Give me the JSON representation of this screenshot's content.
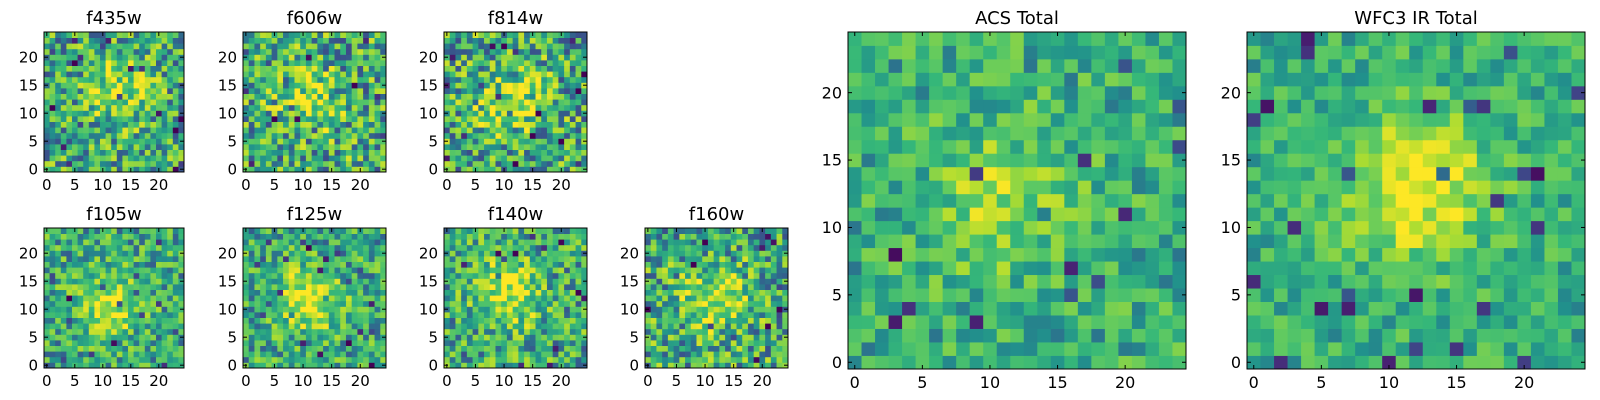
{
  "chart_data": [
    {
      "type": "heatmap",
      "title": "f435w",
      "xlabel": "",
      "ylabel": "",
      "grid": false,
      "xlim": [
        -0.5,
        24.5
      ],
      "ylim": [
        -0.5,
        24.5
      ],
      "xticks": [
        "0",
        "5",
        "10",
        "15",
        "20"
      ],
      "yticks": [
        "0",
        "5",
        "10",
        "15",
        "20"
      ],
      "colormap": "viridis",
      "pixels": [
        25,
        25
      ],
      "noise": 0.55,
      "blob_center": [
        13,
        14
      ],
      "blob_strength": 0.45
    },
    {
      "type": "heatmap",
      "title": "f606w",
      "xlabel": "",
      "ylabel": "",
      "grid": false,
      "xlim": [
        -0.5,
        24.5
      ],
      "ylim": [
        -0.5,
        24.5
      ],
      "xticks": [
        "0",
        "5",
        "10",
        "15",
        "20"
      ],
      "yticks": [
        "0",
        "5",
        "10",
        "15",
        "20"
      ],
      "colormap": "viridis",
      "pixels": [
        25,
        25
      ],
      "noise": 0.6,
      "blob_center": [
        11,
        12
      ],
      "blob_strength": 0.4
    },
    {
      "type": "heatmap",
      "title": "f814w",
      "xlabel": "",
      "ylabel": "",
      "grid": false,
      "xlim": [
        -0.5,
        24.5
      ],
      "ylim": [
        -0.5,
        24.5
      ],
      "xticks": [
        "0",
        "5",
        "10",
        "15",
        "20"
      ],
      "yticks": [
        "0",
        "5",
        "10",
        "15",
        "20"
      ],
      "colormap": "viridis",
      "pixels": [
        25,
        25
      ],
      "noise": 0.6,
      "blob_center": [
        11,
        12
      ],
      "blob_strength": 0.45
    },
    {
      "type": "heatmap",
      "title": "f105w",
      "xlabel": "",
      "ylabel": "",
      "grid": false,
      "xlim": [
        -0.5,
        24.5
      ],
      "ylim": [
        -0.5,
        24.5
      ],
      "xticks": [
        "0",
        "5",
        "10",
        "15",
        "20"
      ],
      "yticks": [
        "0",
        "5",
        "10",
        "15",
        "20"
      ],
      "colormap": "viridis",
      "pixels": [
        25,
        25
      ],
      "noise": 0.45,
      "blob_center": [
        11,
        11
      ],
      "blob_strength": 0.55
    },
    {
      "type": "heatmap",
      "title": "f125w",
      "xlabel": "",
      "ylabel": "",
      "grid": false,
      "xlim": [
        -0.5,
        24.5
      ],
      "ylim": [
        -0.5,
        24.5
      ],
      "xticks": [
        "0",
        "5",
        "10",
        "15",
        "20"
      ],
      "yticks": [
        "0",
        "5",
        "10",
        "15",
        "20"
      ],
      "colormap": "viridis",
      "pixels": [
        25,
        25
      ],
      "noise": 0.45,
      "blob_center": [
        11,
        12
      ],
      "blob_strength": 0.6
    },
    {
      "type": "heatmap",
      "title": "f140w",
      "xlabel": "",
      "ylabel": "",
      "grid": false,
      "xlim": [
        -0.5,
        24.5
      ],
      "ylim": [
        -0.5,
        24.5
      ],
      "xticks": [
        "0",
        "5",
        "10",
        "15",
        "20"
      ],
      "yticks": [
        "0",
        "5",
        "10",
        "15",
        "20"
      ],
      "colormap": "viridis",
      "pixels": [
        25,
        25
      ],
      "noise": 0.5,
      "blob_center": [
        11,
        13
      ],
      "blob_strength": 0.55
    },
    {
      "type": "heatmap",
      "title": "f160w",
      "xlabel": "",
      "ylabel": "",
      "grid": false,
      "xlim": [
        -0.5,
        24.5
      ],
      "ylim": [
        -0.5,
        24.5
      ],
      "xticks": [
        "0",
        "5",
        "10",
        "15",
        "20"
      ],
      "yticks": [
        "0",
        "5",
        "10",
        "15",
        "20"
      ],
      "colormap": "viridis",
      "pixels": [
        25,
        25
      ],
      "noise": 0.55,
      "blob_center": [
        12,
        12
      ],
      "blob_strength": 0.5
    },
    {
      "type": "heatmap",
      "title": "ACS Total",
      "xlabel": "",
      "ylabel": "",
      "grid": false,
      "xlim": [
        -0.5,
        24.5
      ],
      "ylim": [
        -0.5,
        24.5
      ],
      "xticks": [
        "0",
        "5",
        "10",
        "15",
        "20"
      ],
      "yticks": [
        "0",
        "5",
        "10",
        "15",
        "20"
      ],
      "colormap": "viridis",
      "pixels": [
        25,
        25
      ],
      "noise": 0.35,
      "blob_center": [
        11,
        12
      ],
      "blob_strength": 0.35
    },
    {
      "type": "heatmap",
      "title": "WFC3 IR Total",
      "xlabel": "",
      "ylabel": "",
      "grid": false,
      "xlim": [
        -0.5,
        24.5
      ],
      "ylim": [
        -0.5,
        24.5
      ],
      "xticks": [
        "0",
        "5",
        "10",
        "15",
        "20"
      ],
      "yticks": [
        "0",
        "5",
        "10",
        "15",
        "20"
      ],
      "colormap": "viridis",
      "pixels": [
        25,
        25
      ],
      "noise": 0.3,
      "blob_center": [
        12,
        13
      ],
      "blob_strength": 0.6
    }
  ]
}
